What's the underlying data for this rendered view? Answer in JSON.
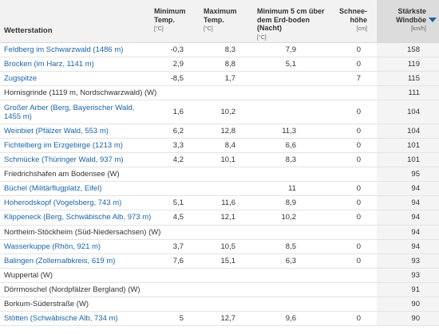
{
  "header": {
    "station": "Wetterstation",
    "min_temp": "Minimum Temp.",
    "min_temp_unit": "[°C]",
    "max_temp": "Maximum Temp.",
    "max_temp_unit": "[°C]",
    "ground_min": "Minimum 5 cm über dem Erd-boden (Nacht)",
    "ground_min_unit": "[°C]",
    "snow": "Schnee-höhe",
    "snow_unit": "[cm]",
    "wind": "Stärkste Windböe",
    "wind_unit": "[km/h]",
    "sort_icon": "sort-descending-icon",
    "link_color": "#1a64a8"
  },
  "rows": [
    {
      "station": "Feldberg im Schwarzwald (1486 m)",
      "link": true,
      "min": "-0,3",
      "max": "8,3",
      "ground": "7,9",
      "snow": "0",
      "wind": "158"
    },
    {
      "station": "Brocken (im Harz, 1141 m)",
      "link": true,
      "min": "2,9",
      "max": "8,8",
      "ground": "5,1",
      "snow": "0",
      "wind": "119"
    },
    {
      "station": "Zugspitze",
      "link": true,
      "min": "-8,5",
      "max": "1,7",
      "ground": "",
      "snow": "7",
      "wind": "115"
    },
    {
      "station": "Hornisgrinde (1119 m, Nordschwarzwald) (W)",
      "link": false,
      "min": "",
      "max": "",
      "ground": "",
      "snow": "",
      "wind": "111"
    },
    {
      "station": "Großer Arber (Berg, Bayerischer Wald, 1455 m)",
      "link": true,
      "min": "1,6",
      "max": "10,2",
      "ground": "",
      "snow": "0",
      "wind": "104"
    },
    {
      "station": "Weinbiet (Pfälzer Wald, 553 m)",
      "link": true,
      "min": "6,2",
      "max": "12,8",
      "ground": "11,3",
      "snow": "0",
      "wind": "104"
    },
    {
      "station": "Fichtelberg im Erzgebirge (1213 m)",
      "link": true,
      "min": "3,3",
      "max": "8,4",
      "ground": "6,6",
      "snow": "0",
      "wind": "101"
    },
    {
      "station": "Schmücke (Thüringer Wald, 937 m)",
      "link": true,
      "min": "4,2",
      "max": "10,1",
      "ground": "8,3",
      "snow": "0",
      "wind": "101"
    },
    {
      "station": "Friedrichshafen am Bodensee (W)",
      "link": false,
      "min": "",
      "max": "",
      "ground": "",
      "snow": "",
      "wind": "95"
    },
    {
      "station": "Büchel (Militärflugplatz, Eifel)",
      "link": true,
      "min": "",
      "max": "",
      "ground": "11",
      "snow": "0",
      "wind": "94"
    },
    {
      "station": "Hoherodskopf (Vogelsberg, 743 m)",
      "link": true,
      "min": "5,1",
      "max": "11,6",
      "ground": "8,9",
      "snow": "0",
      "wind": "94"
    },
    {
      "station": "Klippeneck (Berg, Schwäbische Alb, 973 m)",
      "link": true,
      "min": "4,5",
      "max": "12,1",
      "ground": "10,2",
      "snow": "0",
      "wind": "94"
    },
    {
      "station": "Northeim-Stöckheim (Süd-Niedersachsen) (W)",
      "link": false,
      "min": "",
      "max": "",
      "ground": "",
      "snow": "",
      "wind": "94"
    },
    {
      "station": "Wasserkuppe (Rhön, 921 m)",
      "link": true,
      "min": "3,7",
      "max": "10,5",
      "ground": "8,5",
      "snow": "0",
      "wind": "94"
    },
    {
      "station": "Balingen (Zollernalbkreis, 619 m)",
      "link": true,
      "min": "7,6",
      "max": "15,1",
      "ground": "6,3",
      "snow": "0",
      "wind": "93"
    },
    {
      "station": "Wuppertal (W)",
      "link": false,
      "min": "",
      "max": "",
      "ground": "",
      "snow": "",
      "wind": "93"
    },
    {
      "station": "Dörrmoschel (Nordpfälzer Bergland) (W)",
      "link": false,
      "min": "",
      "max": "",
      "ground": "",
      "snow": "",
      "wind": "91"
    },
    {
      "station": "Borkum-Süderstraße (W)",
      "link": false,
      "min": "",
      "max": "",
      "ground": "",
      "snow": "",
      "wind": "90"
    },
    {
      "station": "Stötten (Schwäbische Alb, 734 m)",
      "link": true,
      "min": "5",
      "max": "12,7",
      "ground": "9,6",
      "snow": "0",
      "wind": "90"
    }
  ]
}
